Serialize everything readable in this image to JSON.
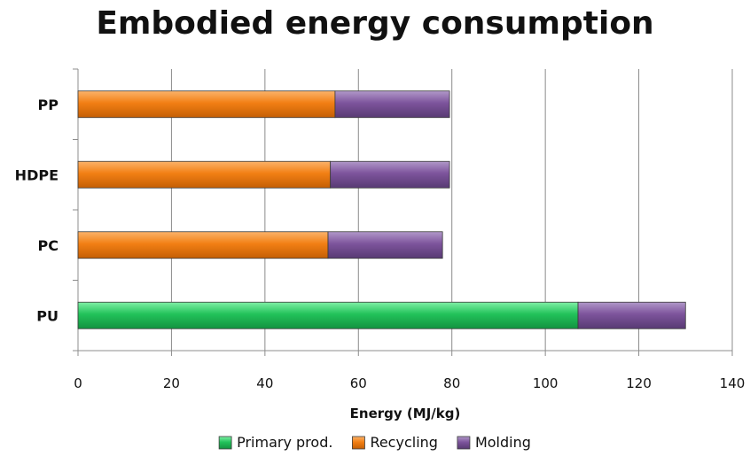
{
  "chart_data": {
    "type": "bar",
    "orientation": "horizontal",
    "stacked": true,
    "title": "Embodied energy consumption",
    "xlabel": "Energy (MJ/kg)",
    "ylabel": "",
    "categories": [
      "PP",
      "HDPE",
      "PC",
      "PU"
    ],
    "xlim": [
      0,
      140
    ],
    "xticks": [
      0,
      20,
      40,
      60,
      80,
      100,
      120,
      140
    ],
    "grid": "vertical",
    "legend_position": "bottom",
    "series": [
      {
        "name": "Primary prod.",
        "color": "#1fbf55",
        "values": [
          0,
          0,
          0,
          107
        ]
      },
      {
        "name": "Recycling",
        "color": "#f07d12",
        "values": [
          55,
          54,
          53.5,
          0
        ]
      },
      {
        "name": "Molding",
        "color": "#7b5299",
        "values": [
          24.5,
          25.5,
          24.5,
          23
        ]
      }
    ]
  }
}
